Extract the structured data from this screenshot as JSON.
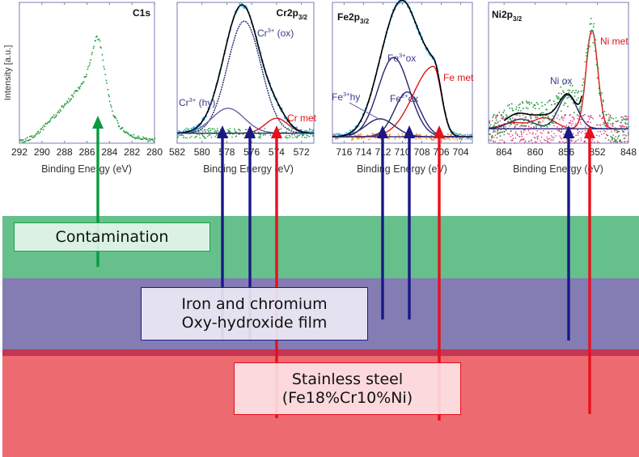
{
  "layers": [
    {
      "name": "contamination",
      "label_lines": [
        "Contamination"
      ],
      "color": "#66c08c",
      "box_fill": "#dff1e6",
      "box_border": "#1aa34a"
    },
    {
      "name": "oxy-hydroxide-film",
      "label_lines": [
        "Iron and chromium",
        "Oxy-hydroxide film"
      ],
      "color": "#837db4",
      "box_fill": "#e6e5f1",
      "box_border": "#1e1a8c"
    },
    {
      "name": "interface",
      "color": "#c43652"
    },
    {
      "name": "stainless-steel",
      "label_lines": [
        "Stainless steel",
        "(Fe18%Cr10%Ni)"
      ],
      "color": "#ec6a70",
      "box_fill": "#fde2e4",
      "box_border": "#e3101f"
    }
  ],
  "colors": {
    "arrow_green": "#0a9a3e",
    "arrow_blue": "#1a1787",
    "arrow_red": "#e8101c",
    "frame": "#9b98c8",
    "fit_total": "#000000",
    "fit_component_blue": "#27246e",
    "fit_metal_red": "#e01515"
  },
  "chart_data": [
    {
      "type": "scatter",
      "id": "c1s",
      "title": "C1s",
      "xlabel": "Binding Energy (eV)",
      "ylabel": "Intensity [a.u.]",
      "xlim": [
        292,
        280
      ],
      "xticks": [
        "292",
        "290",
        "288",
        "286",
        "284",
        "282",
        "280"
      ],
      "ylim": [
        0,
        1.05
      ],
      "series": [
        {
          "name": "C1s data",
          "kind": "points",
          "color": "#1e9a3c",
          "peaks": [
            {
              "center": 285.0,
              "height": 0.68,
              "width": 0.9,
              "shape": "lorentz"
            },
            {
              "center": 286.5,
              "height": 0.22,
              "width": 1.2
            },
            {
              "center": 288.6,
              "height": 0.14,
              "width": 1.3
            }
          ],
          "baseline": 0.0
        }
      ],
      "arrows": [
        {
          "color": "green",
          "at_ev": 285.0
        }
      ]
    },
    {
      "type": "line",
      "id": "cr2p",
      "title": "Cr2p",
      "title_sub": "3/2",
      "xlabel": "Binding Energy (eV)",
      "xlim": [
        582,
        571
      ],
      "xticks": [
        "582",
        "580",
        "578",
        "576",
        "574",
        "572"
      ],
      "ylim": [
        -0.08,
        1.05
      ],
      "series": [
        {
          "name": "Cr³⁺ (ox)",
          "kind": "line",
          "color": "#27246e",
          "dashed": true,
          "center": 576.6,
          "height": 0.9,
          "width": 1.35
        },
        {
          "name": "Cr³⁺ (hy)",
          "kind": "line",
          "color": "#6a64a8",
          "center": 577.9,
          "height": 0.2,
          "width": 1.3
        },
        {
          "name": "Cr met",
          "kind": "line",
          "color": "#e01515",
          "center": 574.0,
          "height": 0.12,
          "width": 0.9
        },
        {
          "name": "Envelope",
          "kind": "line",
          "color": "#000000",
          "sum": true
        },
        {
          "name": "Data",
          "kind": "points",
          "color": "#3aaee6",
          "sum": true
        },
        {
          "name": "Residual",
          "kind": "points",
          "color": "#1e9a3c",
          "noise": true
        }
      ],
      "annotations": [
        "Cr³⁺ (ox)",
        "Cr³⁺ (hy)",
        "Cr met"
      ],
      "arrows": [
        {
          "color": "blue",
          "at_ev": 577.8
        },
        {
          "color": "blue",
          "at_ev": 576.0
        },
        {
          "color": "red",
          "at_ev": 574.2
        }
      ]
    },
    {
      "type": "line",
      "id": "fe2p",
      "title": "Fe2p",
      "title_sub": "3/2",
      "xlabel": "Binding Energy (eV)",
      "xlim": [
        717.2,
        702.8
      ],
      "xticks": [
        "716",
        "714",
        "712",
        "710",
        "708",
        "706",
        "704"
      ],
      "ylim": [
        -0.05,
        1.05
      ],
      "series": [
        {
          "name": "Fe³⁺ ox",
          "kind": "line",
          "color": "#27246e",
          "center": 710.9,
          "height": 0.62,
          "width": 1.6
        },
        {
          "name": "Fe²⁺ ox",
          "kind": "line",
          "color": "#27246e",
          "center": 709.5,
          "height": 0.35,
          "width": 1.3
        },
        {
          "name": "Fe³⁺ hy",
          "kind": "line",
          "color": "#27246e",
          "center": 712.3,
          "height": 0.14,
          "width": 1.5
        },
        {
          "name": "Fe met",
          "kind": "line",
          "color": "#e01515",
          "center": 706.8,
          "height": 0.55,
          "width": 0.8,
          "tail": true
        },
        {
          "name": "Envelope",
          "kind": "line",
          "color": "#000000",
          "sum": true
        },
        {
          "name": "Data",
          "kind": "points",
          "color": "#3aaee6",
          "sum": true
        },
        {
          "name": "Residual",
          "kind": "points",
          "color": "#f08a1c",
          "noise": true
        }
      ],
      "annotations": [
        "Fe³⁺ ox",
        "Fe²⁺ ox",
        "Fe³⁺ hy",
        "Fe met"
      ],
      "arrows": [
        {
          "color": "blue",
          "at_ev": 712.1
        },
        {
          "color": "blue",
          "at_ev": 709.9
        },
        {
          "color": "red",
          "at_ev": 706.4
        }
      ]
    },
    {
      "type": "line",
      "id": "ni2p",
      "title": "Ni2p",
      "title_sub": "3/2",
      "xlabel": "Binding Energy (eV)",
      "xlim": [
        866,
        848
      ],
      "xticks": [
        "864",
        "860",
        "856",
        "852",
        "848"
      ],
      "ylim": [
        -0.12,
        1.05
      ],
      "series": [
        {
          "name": "Ni met",
          "kind": "line",
          "color": "#e01515",
          "center": 852.7,
          "height": 0.82,
          "width": 0.75,
          "extra": [
            {
              "center": 858.8,
              "height": 0.09,
              "width": 1.4
            },
            {
              "center": 862.8,
              "height": 0.05,
              "width": 1.5
            }
          ]
        },
        {
          "name": "Ni ox",
          "kind": "line",
          "color": "#27246e",
          "center": 855.8,
          "height": 0.28,
          "width": 1.2,
          "extra": [
            {
              "center": 861.8,
              "height": 0.08,
              "width": 1.6
            }
          ]
        },
        {
          "name": "Envelope",
          "kind": "line",
          "color": "#000000",
          "sum": true,
          "range": [
            864,
            854
          ]
        },
        {
          "name": "Data",
          "kind": "points",
          "color": "#1e9a3c",
          "sum": true,
          "noisy": true
        },
        {
          "name": "Residual",
          "kind": "points",
          "color": "#d23a7c",
          "noise": true
        }
      ],
      "annotations": [
        "Ni ox",
        "Ni met"
      ],
      "arrows": [
        {
          "color": "blue",
          "at_ev": 855.8
        },
        {
          "color": "red",
          "at_ev": 852.7
        }
      ]
    }
  ],
  "labels": {
    "c1s_title": "C1s",
    "cr_title": "Cr2p",
    "fe_title": "Fe2p",
    "ni_title": "Ni2p",
    "sub": "3/2",
    "xlabel": "Binding Energy (eV)",
    "ylabel": "Intensity [a.u.]",
    "cr_ox": "Cr",
    "cr_sup": "3+",
    "cr_ox_tail": " (ox)",
    "cr_hy_tail": " (hy)",
    "cr_met": "Cr met",
    "fe_ox3": "Fe",
    "fe_sup3": "3+",
    "fe_sup2": "2+",
    "ox_tail": "ox",
    "hy_tail": "hy",
    "fe_met": "Fe met",
    "ni_ox": "Ni ox",
    "ni_met": "Ni met"
  }
}
